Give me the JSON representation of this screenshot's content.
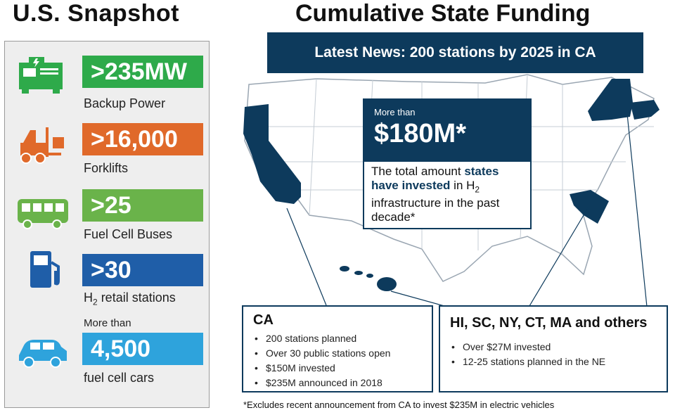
{
  "snapshot": {
    "title": "U.S. Snapshot",
    "stats": [
      {
        "value": ">235MW",
        "label": "Backup Power",
        "color": "#2eaa4a",
        "icon": "generator-icon"
      },
      {
        "value": ">16,000",
        "label": "Forklifts",
        "color": "#e0692a",
        "icon": "forklift-icon"
      },
      {
        "value": ">25",
        "label": "Fuel Cell Buses",
        "color": "#6ab34a",
        "icon": "bus-icon"
      },
      {
        "value": ">30",
        "label_main": "H",
        "label_sub": "2",
        "label_rest": " retail stations",
        "color": "#1f5ea8",
        "icon": "fuel-pump-icon"
      },
      {
        "pre": "More than",
        "value": "4,500",
        "label": "fuel cell cars",
        "color": "#2ea3dc",
        "icon": "car-icon"
      }
    ]
  },
  "funding": {
    "title": "Cumulative State Funding",
    "news": "Latest News: 200 stations by 2025 in CA",
    "callout": {
      "pre": "More than",
      "amount": "$180M*",
      "text_1": "The total amount ",
      "text_hl": "states have invested",
      "text_2": " in H",
      "text_sub": "2",
      "text_3": " infrastructure in the past decade*"
    },
    "ca_box": {
      "title": "CA",
      "items": [
        "200 stations planned",
        "Over 30 public stations open",
        "$150M invested",
        "$235M announced in 2018"
      ]
    },
    "others_box": {
      "title": "HI, SC, NY, CT, MA and others",
      "items": [
        "Over $27M invested",
        "12-25 stations planned in the NE"
      ]
    },
    "footnote": "*Excludes recent announcement from CA to invest $235M in electric vehicles"
  },
  "colors": {
    "navy": "#0d3a5c",
    "map_line": "#9aa6b2"
  }
}
